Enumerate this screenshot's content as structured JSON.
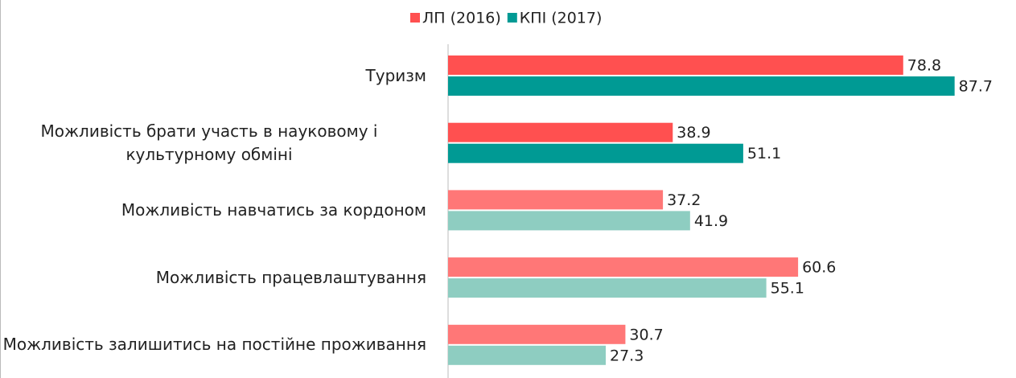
{
  "chart_data": {
    "type": "bar",
    "orientation": "horizontal",
    "categories": [
      "Туризм",
      "Можливість брати участь в науковому і культурному обміні",
      "Можливість навчатись за кордоном",
      "Можливість працевлаштування",
      "Можливість залишитись на постійне проживання"
    ],
    "series": [
      {
        "name": "ЛП (2016)",
        "color": "#ff5050",
        "colors": [
          "#ff5050",
          "#ff5050",
          "#ff7777",
          "#ff7777",
          "#ff7777"
        ],
        "values": [
          78.8,
          38.9,
          37.2,
          60.6,
          30.7
        ]
      },
      {
        "name": "КПІ (2017)",
        "color": "#009a94",
        "colors": [
          "#009a94",
          "#009a94",
          "#8ecdc1",
          "#8ecdc1",
          "#8ecdc1"
        ],
        "values": [
          87.7,
          51.1,
          41.9,
          55.1,
          27.3
        ]
      }
    ],
    "legend": "top"
  }
}
